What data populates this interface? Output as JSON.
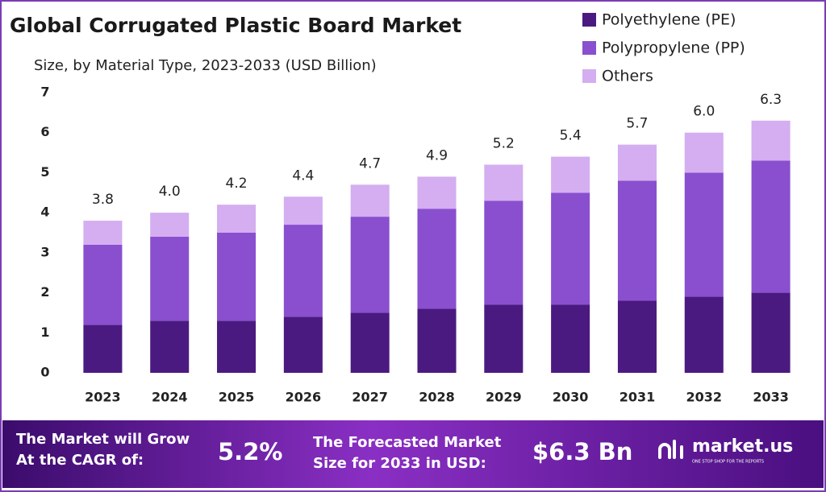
{
  "chart_data": {
    "type": "stacked-bar",
    "title": "Global Corrugated Plastic Board Market",
    "subtitle": "Size, by Material Type, 2023-2033 (USD Billion)",
    "categories": [
      "2023",
      "2024",
      "2025",
      "2026",
      "2027",
      "2028",
      "2029",
      "2030",
      "2031",
      "2032",
      "2033"
    ],
    "series": [
      {
        "name": "Polyethylene (PE)",
        "color": "#4b1a80",
        "values": [
          1.2,
          1.3,
          1.3,
          1.4,
          1.5,
          1.6,
          1.7,
          1.7,
          1.8,
          1.9,
          2.0
        ]
      },
      {
        "name": "Polypropylene (PP)",
        "color": "#8a4fcf",
        "values": [
          2.0,
          2.1,
          2.2,
          2.3,
          2.4,
          2.5,
          2.6,
          2.8,
          3.0,
          3.1,
          3.3
        ]
      },
      {
        "name": "Others",
        "color": "#d4aef0",
        "values": [
          0.6,
          0.6,
          0.7,
          0.7,
          0.8,
          0.8,
          0.9,
          0.9,
          0.9,
          1.0,
          1.0
        ]
      }
    ],
    "totals": [
      3.8,
      4.0,
      4.2,
      4.4,
      4.7,
      4.9,
      5.2,
      5.4,
      5.7,
      6.0,
      6.3
    ],
    "total_labels": [
      "3.8",
      "4.0",
      "4.2",
      "4.4",
      "4.7",
      "4.9",
      "5.2",
      "5.4",
      "5.7",
      "6.0",
      "6.3"
    ],
    "ylim": [
      0,
      7
    ],
    "yticks": [
      0,
      1,
      2,
      3,
      4,
      5,
      6,
      7
    ],
    "grid": false,
    "legend": "top-right"
  },
  "footer": {
    "cagr_text": [
      "The Market will Grow",
      "At the CAGR of:"
    ],
    "cagr": "5.2%",
    "forecast_text": [
      "The Forecasted Market",
      "Size for 2033 in USD:"
    ],
    "forecast": "$6.3 Bn",
    "brand": "market.us",
    "tagline": "ONE STOP SHOP FOR THE REPORTS"
  }
}
